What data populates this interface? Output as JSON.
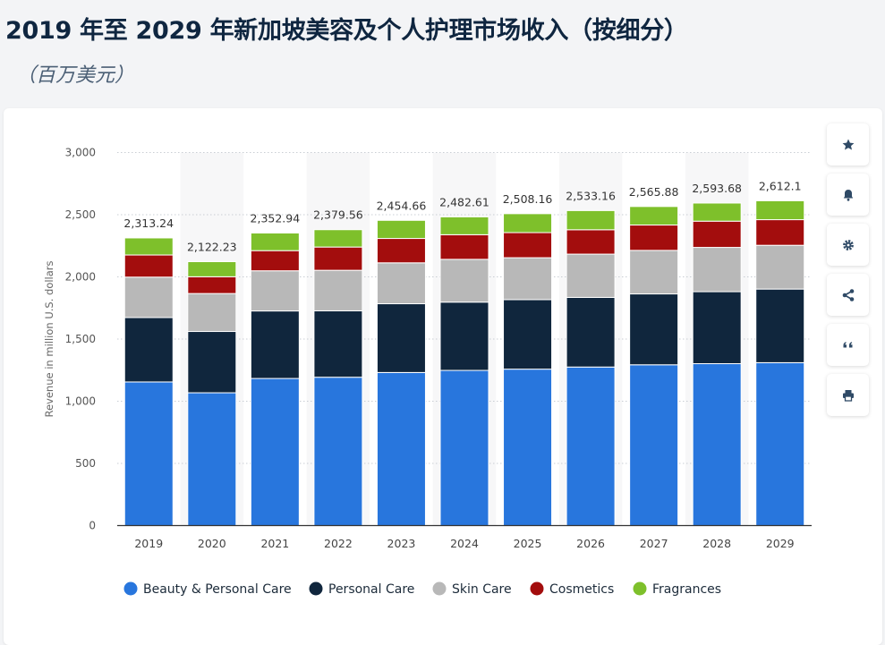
{
  "header": {
    "title": "2019 年至 2029 年新加坡美容及个人护理市场收入（按细分）",
    "subtitle": "（百万美元）"
  },
  "toolbar": {
    "buttons": [
      {
        "name": "favorite-button",
        "icon": "star-icon"
      },
      {
        "name": "notification-button",
        "icon": "bell-icon"
      },
      {
        "name": "settings-button",
        "icon": "gear-icon"
      },
      {
        "name": "share-button",
        "icon": "share-icon"
      },
      {
        "name": "cite-button",
        "icon": "quote-icon"
      },
      {
        "name": "print-button",
        "icon": "print-icon"
      }
    ]
  },
  "chart_data": {
    "type": "bar",
    "stacked": true,
    "title": "2019 年至 2029 年新加坡美容及个人护理市场收入（按细分）",
    "subtitle": "（百万美元）",
    "xlabel": "",
    "ylabel": "Revenue in million U.S. dollars",
    "ylim": [
      0,
      3000
    ],
    "yticks": [
      0,
      500,
      1000,
      1500,
      2000,
      2500,
      3000
    ],
    "ytick_labels": [
      "0",
      "500",
      "1,000",
      "1,500",
      "2,000",
      "2,500",
      "3,000"
    ],
    "grid": true,
    "legend_position": "bottom",
    "categories": [
      "2019",
      "2020",
      "2021",
      "2022",
      "2023",
      "2024",
      "2025",
      "2026",
      "2027",
      "2028",
      "2029"
    ],
    "totals": [
      2313.24,
      2122.23,
      2352.94,
      2379.56,
      2454.66,
      2482.61,
      2508.16,
      2533.16,
      2565.88,
      2593.68,
      2612.1
    ],
    "total_labels": [
      "2,313.24",
      "2,122.23",
      "2,352.94",
      "2,379.56",
      "2,454.66",
      "2,482.61",
      "2,508.16",
      "2,533.16",
      "2,565.88",
      "2,593.68",
      "2,612.1"
    ],
    "series": [
      {
        "name": "Beauty & Personal Care",
        "color": "#2876dd",
        "values": [
          1155,
          1068,
          1183,
          1193,
          1231,
          1248,
          1258,
          1275,
          1293,
          1302,
          1310
        ]
      },
      {
        "name": "Personal Care",
        "color": "#10263d",
        "values": [
          518,
          493,
          543,
          534,
          553,
          549,
          559,
          560,
          570,
          579,
          592
        ]
      },
      {
        "name": "Skin Care",
        "color": "#b8b8b8",
        "values": [
          325,
          305,
          323,
          326,
          329,
          344,
          337,
          348,
          350,
          356,
          352
        ]
      },
      {
        "name": "Cosmetics",
        "color": "#a30d0d",
        "values": [
          178,
          135,
          162,
          187,
          196,
          198,
          202,
          196,
          204,
          211,
          206
        ]
      },
      {
        "name": "Fragrances",
        "color": "#7ec02b",
        "values": [
          137.24,
          121.23,
          141.94,
          139.56,
          145.66,
          143.61,
          152.16,
          154.16,
          148.88,
          145.68,
          152.1
        ]
      }
    ]
  }
}
